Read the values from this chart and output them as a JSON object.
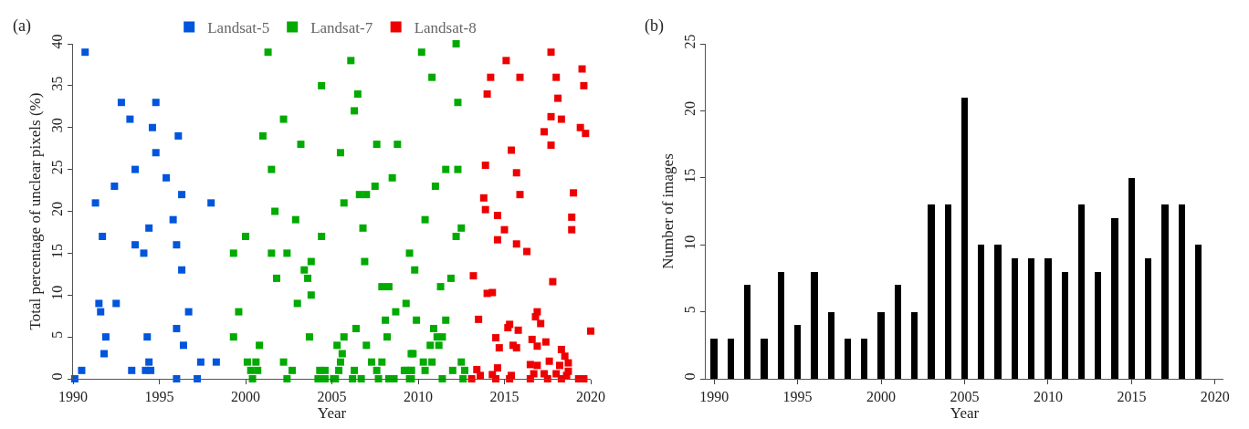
{
  "chart_data": [
    {
      "type": "scatter",
      "xlabel": "Year",
      "ylabel": "Total percentage of unclear pixels (%)",
      "annotations": [
        "(a)"
      ],
      "xlim": [
        1990,
        2020
      ],
      "xticks": [
        1990,
        1995,
        2000,
        2005,
        2010,
        2015,
        2020
      ],
      "ylim": [
        0,
        40
      ],
      "yticks": [
        0,
        5,
        10,
        15,
        20,
        25,
        30,
        35,
        40
      ],
      "marker": "square",
      "legend": "top",
      "series": [
        {
          "name": "Landsat-5",
          "color": "#0055dd",
          "x": [
            1990.1,
            1990.5,
            1990.7,
            1991.3,
            1991.5,
            1991.6,
            1991.7,
            1991.8,
            1991.9,
            1992.4,
            1992.5,
            1992.8,
            1993.3,
            1993.4,
            1993.6,
            1993.6,
            1994.1,
            1994.2,
            1994.4,
            1994.4,
            1994.3,
            1994.5,
            1994.6,
            1994.8,
            1994.8,
            1995.4,
            1995.8,
            1996.0,
            1996.0,
            1996.0,
            1996.1,
            1996.3,
            1996.3,
            1996.4,
            1996.7,
            1997.2,
            1997.4,
            1998.0,
            1998.3
          ],
          "values": [
            0,
            1,
            39,
            21,
            9,
            8,
            17,
            3,
            5,
            23,
            9,
            33,
            31,
            1,
            25,
            16,
            15,
            1,
            2,
            18,
            5,
            1,
            30,
            33,
            27,
            24,
            19,
            16,
            6,
            0,
            29,
            22,
            13,
            4,
            8,
            0,
            2,
            21,
            2
          ]
        },
        {
          "name": "Landsat-7",
          "color": "#00aa00",
          "x": [
            2001.3,
            2006.1,
            2004.4,
            2006.5,
            2006.3,
            2002.2,
            2001.0,
            2003.2,
            2007.6,
            2008.8,
            2005.5,
            2001.5,
            2008.5,
            2007.5,
            2006.6,
            2007.0,
            2005.7,
            2001.7,
            2002.9,
            2000.0,
            2004.4,
            1999.3,
            2001.5,
            2002.4,
            2006.8,
            2003.8,
            2006.9,
            2003.4,
            2003.6,
            2001.8,
            2007.9,
            2008.3,
            2003.8,
            2003.0,
            2009.3,
            1999.6,
            2008.7,
            2008.1,
            2006.4,
            1999.3,
            2003.7,
            2005.7,
            2008.2,
            2000.8,
            2005.3,
            2007.0,
            2005.6,
            2009.6,
            2000.1,
            2000.6,
            2002.2,
            2005.5,
            2007.3,
            2007.9,
            2000.7,
            2000.3,
            2002.7,
            2004.3,
            2004.6,
            2005.4,
            2006.3,
            2007.6,
            2009.2,
            2009.6,
            2000.4,
            2002.4,
            2004.2,
            2004.6,
            2005.1,
            2005.2,
            2006.2,
            2006.7,
            2007.7,
            2008.3,
            2008.6,
            2009.5,
            2010.2,
            2012.2,
            2010.8,
            2012.3,
            2011.6,
            2012.3,
            2011.0,
            2010.4,
            2012.5,
            2012.2,
            2009.5,
            2009.8,
            2011.9,
            2011.3,
            2009.9,
            2011.6,
            2010.9,
            2011.4,
            2011.1,
            2010.7,
            2011.2,
            2009.7,
            2010.3,
            2010.8,
            2012.5,
            2009.3,
            2009.6,
            2010.4,
            2012.0,
            2012.7,
            2009.6,
            2011.4,
            2012.6
          ],
          "values": [
            39,
            38,
            35,
            34,
            32,
            31,
            29,
            28,
            28,
            28,
            27,
            25,
            24,
            23,
            22,
            22,
            21,
            20,
            19,
            17,
            17,
            15,
            15,
            15,
            18,
            14,
            14,
            13,
            12,
            12,
            11,
            11,
            10,
            9,
            9,
            8,
            8,
            7,
            6,
            5,
            5,
            5,
            5,
            4,
            4,
            4,
            3,
            3,
            2,
            2,
            2,
            2,
            2,
            2,
            1,
            1,
            1,
            1,
            1,
            1,
            1,
            1,
            1,
            1,
            0,
            0,
            0,
            0,
            0,
            0,
            0,
            0,
            0,
            0,
            0,
            0,
            39,
            40,
            36,
            33,
            25,
            25,
            23,
            19,
            18,
            17,
            15,
            13,
            12,
            11,
            7,
            7,
            6,
            5,
            5,
            4,
            4,
            3,
            2,
            2,
            2,
            1,
            1,
            1,
            1,
            1,
            0,
            0,
            0
          ]
        },
        {
          "name": "Landsat-8",
          "color": "#ee0000",
          "x": [
            2017.7,
            2015.1,
            2019.5,
            2014.2,
            2015.9,
            2018.0,
            2019.6,
            2014.0,
            2018.1,
            2017.7,
            2018.3,
            2017.3,
            2019.4,
            2019.7,
            2017.7,
            2015.4,
            2013.9,
            2015.7,
            2015.9,
            2019.0,
            2013.8,
            2013.9,
            2014.6,
            2018.9,
            2018.9,
            2015.0,
            2014.6,
            2015.7,
            2016.3,
            2013.2,
            2017.8,
            2014.0,
            2014.3,
            2013.5,
            2016.9,
            2016.8,
            2017.1,
            2015.3,
            2015.2,
            2015.8,
            2020.0,
            2014.5,
            2016.6,
            2017.4,
            2016.9,
            2014.7,
            2015.5,
            2015.7,
            2018.3,
            2018.5,
            2016.5,
            2016.9,
            2017.6,
            2018.2,
            2018.7,
            2013.4,
            2014.6,
            2018.7,
            2013.6,
            2014.3,
            2015.4,
            2016.7,
            2017.3,
            2018.0,
            2018.6,
            2013.1,
            2014.5,
            2015.3,
            2016.5,
            2017.5,
            2018.3,
            2019.3,
            2019.6
          ],
          "values": [
            39,
            38,
            37,
            36,
            36,
            36,
            35,
            34,
            33.5,
            31.3,
            31,
            29.5,
            30,
            29.3,
            27.9,
            27.3,
            25.5,
            24.6,
            22,
            22.2,
            21.6,
            20.2,
            19.5,
            19.3,
            17.8,
            17.8,
            16.6,
            16.1,
            15.2,
            12.3,
            11.6,
            10.2,
            10.3,
            7.1,
            8,
            7.4,
            6.6,
            6.5,
            6.1,
            5.8,
            5.7,
            4.9,
            4.7,
            4.4,
            3.9,
            3.7,
            4,
            3.7,
            3.5,
            2.7,
            1.7,
            1.6,
            2.1,
            1.6,
            1.9,
            1.1,
            1.3,
            0.9,
            0.4,
            0.5,
            0.4,
            0.6,
            0.6,
            0.6,
            0.4,
            0,
            0,
            0,
            0,
            0,
            0,
            0,
            0
          ]
        }
      ]
    },
    {
      "type": "bar",
      "xlabel": "Year",
      "ylabel": "Number of images",
      "annotations": [
        "(b)"
      ],
      "xlim": [
        1989.5,
        2020.5
      ],
      "xticks": [
        1990,
        1995,
        2000,
        2005,
        2010,
        2015,
        2020
      ],
      "ylim": [
        0,
        25
      ],
      "yticks": [
        0,
        5,
        10,
        15,
        20,
        25
      ],
      "x": [
        1990,
        1991,
        1992,
        1993,
        1994,
        1995,
        1996,
        1997,
        1998,
        1999,
        2000,
        2001,
        2002,
        2003,
        2004,
        2005,
        2006,
        2007,
        2008,
        2009,
        2010,
        2011,
        2012,
        2013,
        2014,
        2015,
        2016,
        2017,
        2018,
        2019
      ],
      "series": [
        {
          "color": "#000000",
          "values": [
            3,
            3,
            7,
            3,
            8,
            4,
            8,
            5,
            3,
            3,
            5,
            7,
            5,
            13,
            13,
            21,
            10,
            10,
            9,
            9,
            9,
            8,
            13,
            8,
            12,
            15,
            9,
            13,
            13,
            10
          ]
        }
      ]
    }
  ]
}
